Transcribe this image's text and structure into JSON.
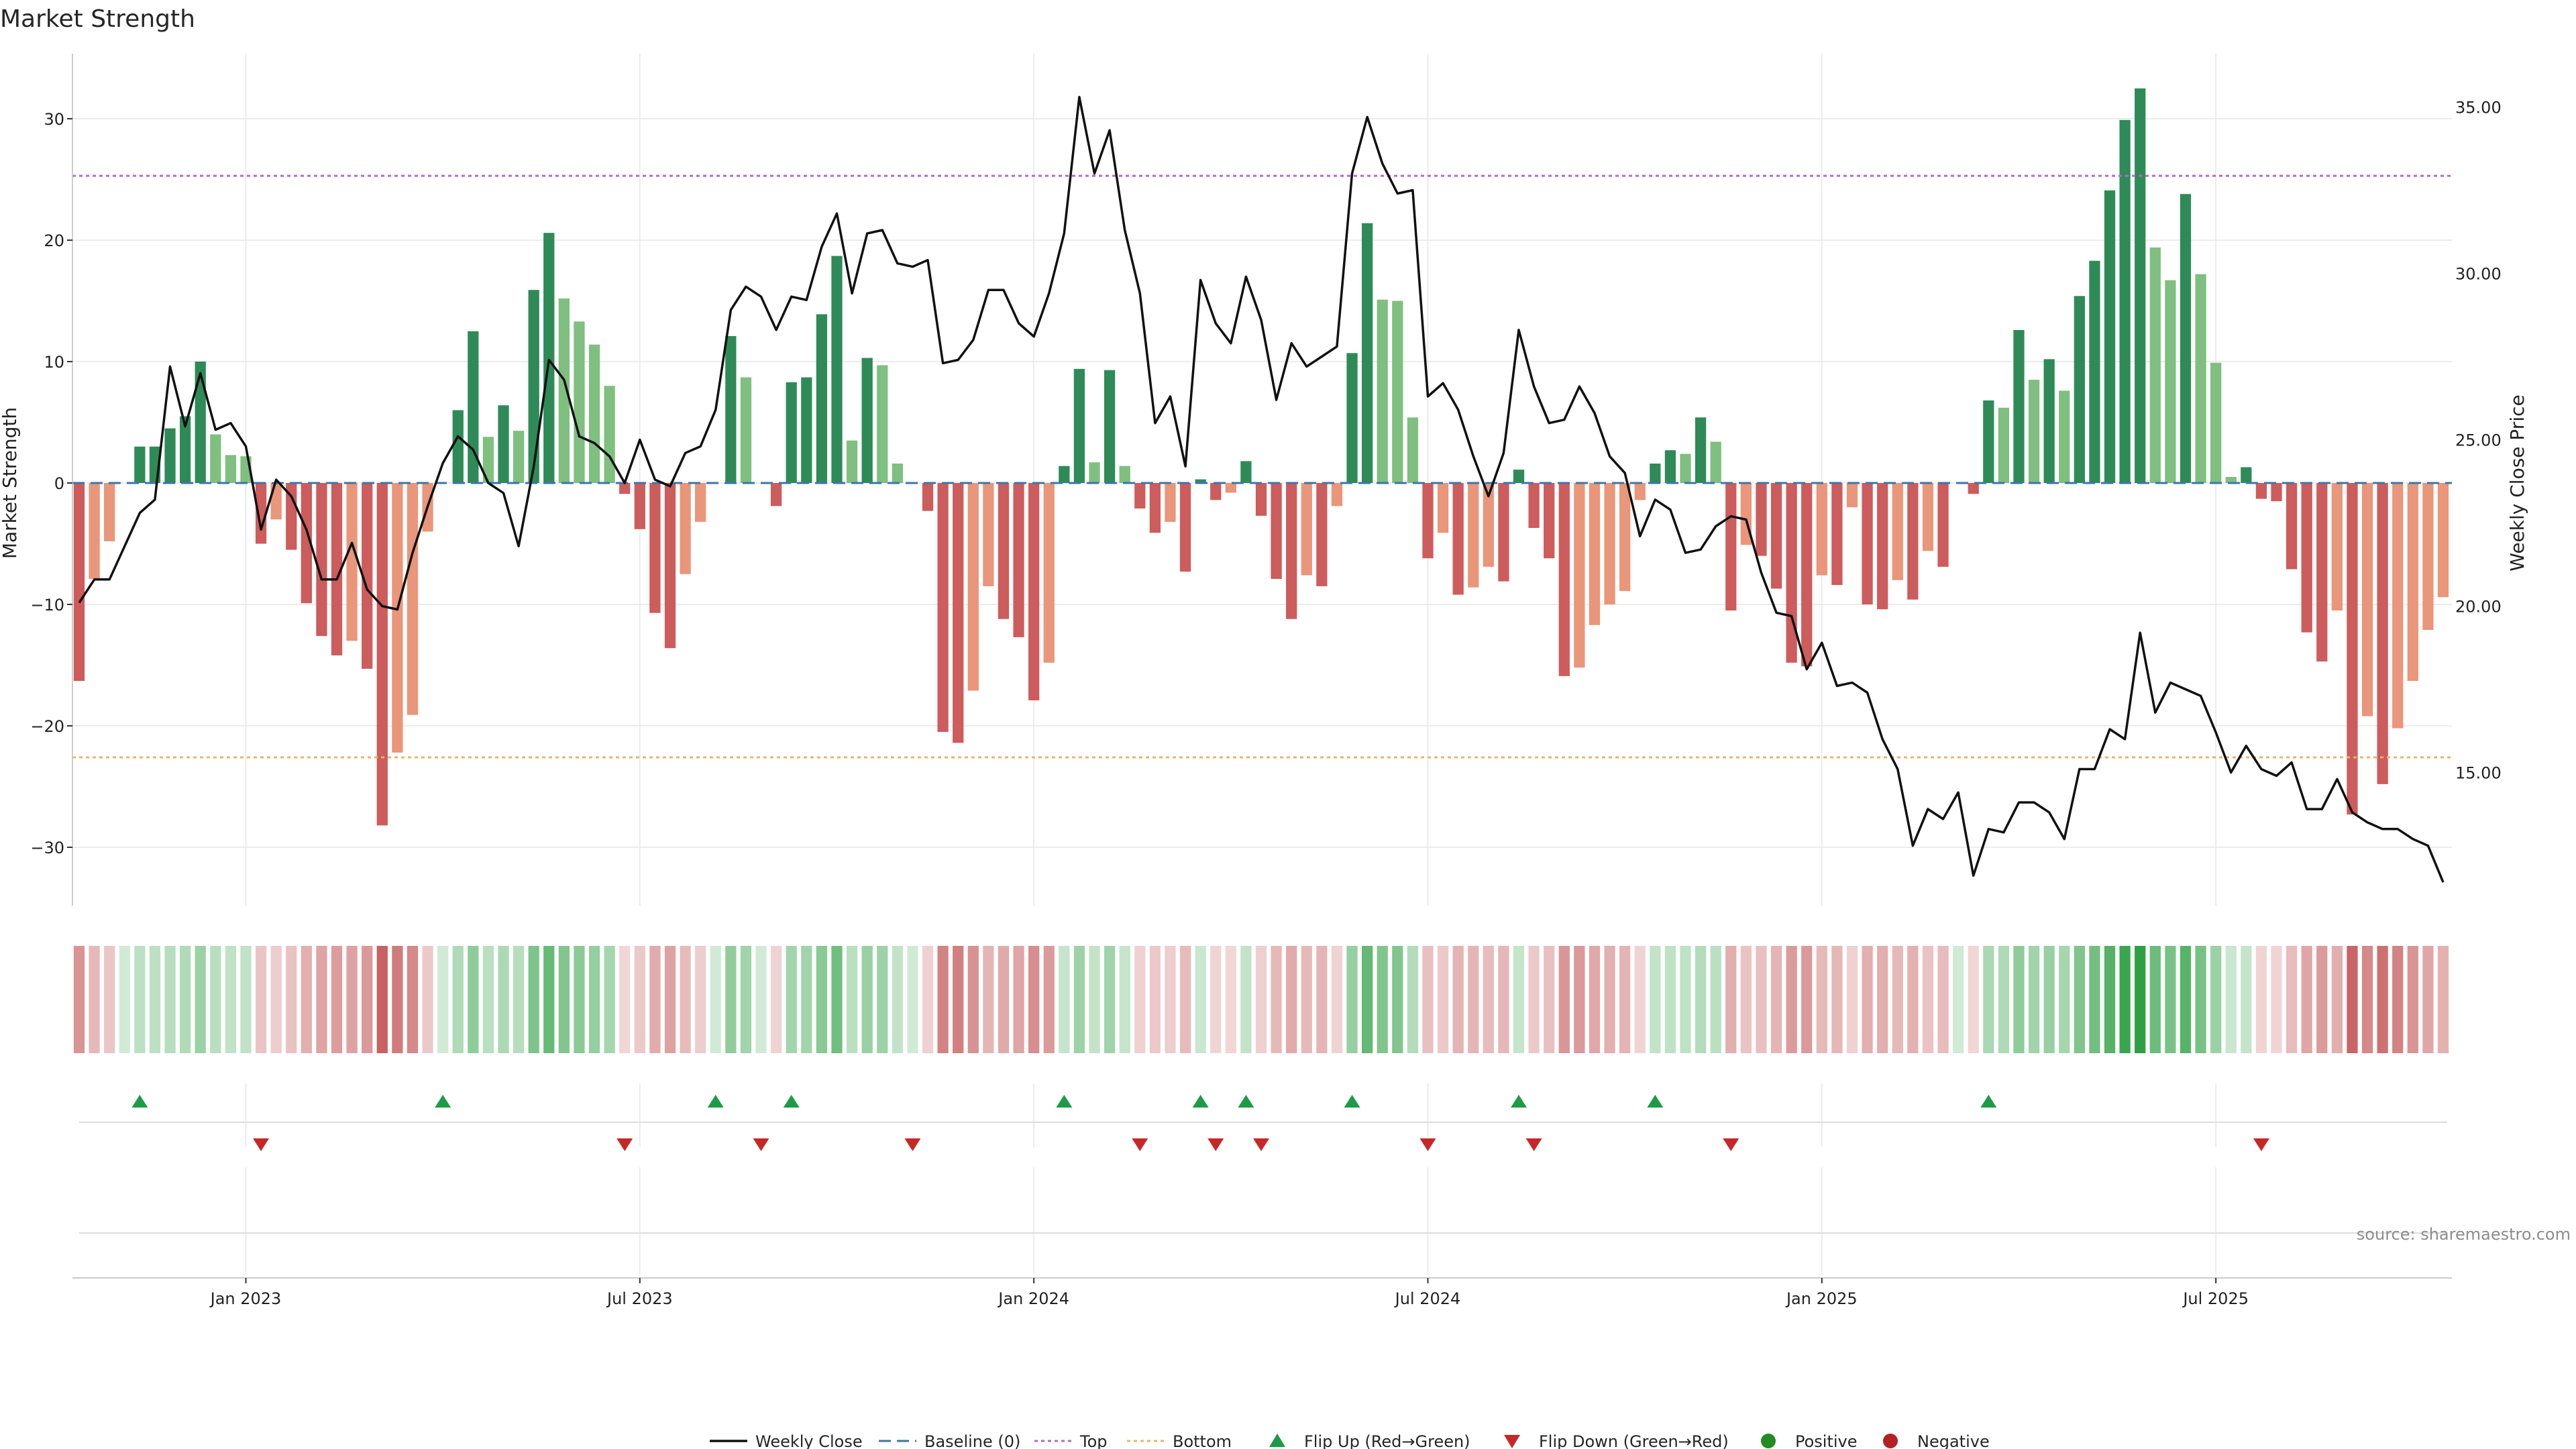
{
  "chart_data": {
    "type": "bar",
    "title": "Market Strength",
    "ylabel": "Market Strength",
    "y2label": "Weekly Close Price",
    "source": "source: sharemaestro.com",
    "ylim": [
      -35,
      35
    ],
    "y2lim": [
      11.5,
      36.5
    ],
    "yticks": [
      {
        "v": 30,
        "label": "30"
      },
      {
        "v": 20,
        "label": "20"
      },
      {
        "v": 10,
        "label": "10"
      },
      {
        "v": 0,
        "label": "0"
      },
      {
        "v": -10,
        "label": "−10"
      },
      {
        "v": -20,
        "label": "−20"
      },
      {
        "v": -30,
        "label": "−30"
      }
    ],
    "y2ticks": [
      {
        "v": 35,
        "label": "35.00"
      },
      {
        "v": 30,
        "label": "30.00"
      },
      {
        "v": 25,
        "label": "25.00"
      },
      {
        "v": 20,
        "label": "20.00"
      },
      {
        "v": 15,
        "label": "15.00"
      }
    ],
    "xticks": [
      {
        "week": 11,
        "label": "Jan 2023"
      },
      {
        "week": 37,
        "label": "Jul 2023"
      },
      {
        "week": 63,
        "label": "Jan 2024"
      },
      {
        "week": 89,
        "label": "Jul 2024"
      },
      {
        "week": 115,
        "label": "Jan 2025"
      },
      {
        "week": 141,
        "label": "Jul 2025"
      }
    ],
    "top_line": 25.3,
    "bottom_line": -22.6,
    "strength": [
      -16.3,
      -7.9,
      -4.8,
      0,
      3,
      3,
      4.5,
      5.5,
      10,
      4,
      2.3,
      2.2,
      -5,
      -3,
      -5.5,
      -9.9,
      -12.6,
      -14.2,
      -13,
      -15.3,
      -28.2,
      -22.2,
      -19.1,
      -4,
      0,
      6,
      12.5,
      3.8,
      6.4,
      4.3,
      15.9,
      20.6,
      15.2,
      13.3,
      11.4,
      8,
      -0.9,
      -3.8,
      -10.7,
      -13.6,
      -7.5,
      -3.2,
      0,
      12.1,
      8.7,
      0,
      -1.9,
      8.3,
      8.7,
      13.9,
      18.7,
      3.5,
      10.3,
      9.7,
      1.6,
      0,
      -2.3,
      -20.5,
      -21.4,
      -17.1,
      -8.5,
      -11.2,
      -12.7,
      -17.9,
      -14.8,
      1.4,
      9.4,
      1.7,
      9.3,
      1.4,
      -2.1,
      -4.1,
      -3.2,
      -7.3,
      0.3,
      -1.4,
      -0.8,
      1.8,
      -2.7,
      -7.9,
      -11.2,
      -7.6,
      -8.5,
      -1.9,
      10.7,
      21.4,
      15.1,
      15,
      5.4,
      -6.2,
      -4.1,
      -9.2,
      -8.6,
      -6.9,
      -8.1,
      1.1,
      -3.7,
      -6.2,
      -15.9,
      -15.2,
      -11.7,
      -10,
      -8.9,
      -1.4,
      1.6,
      2.7,
      2.4,
      5.4,
      3.4,
      -10.5,
      -5.1,
      -6,
      -8.7,
      -14.8,
      -15.1,
      -7.6,
      -8.4,
      -2,
      -10,
      -10.4,
      -8,
      -9.6,
      -5.6,
      -6.9,
      0,
      -0.9,
      6.8,
      6.2,
      12.6,
      8.5,
      10.2,
      7.6,
      15.4,
      18.3,
      24.1,
      29.9,
      32.5,
      19.4,
      16.7,
      23.8,
      17.2,
      9.9,
      0.5,
      1.3,
      -1.3,
      -1.5,
      -7.1,
      -12.3,
      -14.7,
      -10.5,
      -27.3,
      -19.2,
      -24.8,
      -20.2,
      -16.3,
      -12.1,
      -9.4
    ],
    "close": [
      20.1,
      20.8,
      20.8,
      21.8,
      22.8,
      23.2,
      27.2,
      25.4,
      27,
      25.3,
      25.5,
      24.8,
      22.3,
      23.8,
      23.3,
      22.3,
      20.8,
      20.8,
      21.9,
      20.5,
      20,
      19.9,
      21.6,
      23,
      24.3,
      25.1,
      24.7,
      23.7,
      23.4,
      21.8,
      24.2,
      27.4,
      26.8,
      25.1,
      24.9,
      24.5,
      23.7,
      25,
      23.8,
      23.6,
      24.6,
      24.8,
      25.9,
      28.9,
      29.6,
      29.3,
      28.3,
      29.3,
      29.2,
      30.8,
      31.8,
      29.4,
      31.2,
      31.3,
      30.3,
      30.2,
      30.4,
      27.3,
      27.4,
      28,
      29.5,
      29.5,
      28.5,
      28.1,
      29.4,
      31.2,
      35.3,
      33,
      34.3,
      31.3,
      29.4,
      25.5,
      26.3,
      24.2,
      29.8,
      28.5,
      27.9,
      29.9,
      28.6,
      26.2,
      27.9,
      27.2,
      27.5,
      27.8,
      33,
      34.7,
      33.3,
      32.4,
      32.5,
      26.3,
      26.7,
      25.9,
      24.5,
      23.3,
      24.6,
      28.3,
      26.6,
      25.5,
      25.6,
      26.6,
      25.8,
      24.5,
      24,
      22.1,
      23.2,
      22.9,
      21.6,
      21.7,
      22.4,
      22.7,
      22.6,
      21,
      19.8,
      19.7,
      18.1,
      18.9,
      17.6,
      17.7,
      17.4,
      16,
      15.1,
      12.8,
      13.9,
      13.6,
      14.4,
      11.9,
      13.3,
      13.2,
      14.1,
      14.1,
      13.8,
      13,
      15.1,
      15.1,
      16.3,
      16,
      19.2,
      16.8,
      17.7,
      17.5,
      17.3,
      16.2,
      15,
      15.8,
      15.1,
      14.9,
      15.3,
      13.9,
      13.9,
      14.8,
      13.8,
      13.5,
      13.3,
      13.3,
      13,
      12.8,
      11.7
    ],
    "heat_strip": {
      "type": "heatmap",
      "rows": 1,
      "values": "strength"
    },
    "flips_up": [
      4,
      24,
      42,
      47,
      65,
      74,
      77,
      84,
      95,
      104,
      126
    ],
    "flips_down": [
      12,
      36,
      45,
      55,
      70,
      75,
      78,
      89,
      96,
      109,
      144
    ],
    "colors": {
      "pos_strong": "#2e8b57",
      "pos_weak": "#7fbf7f",
      "neg_strong": "#cd5c5c",
      "neg_weak": "#e9967a",
      "close_line": "#111111",
      "baseline": "#3b76a8",
      "top": "#b36bc9",
      "bottom": "#e8b56a",
      "flip_up": "#1e9b46",
      "flip_down": "#c62828",
      "positive": "#228b22",
      "negative": "#b22222",
      "grid": "#e6e6e6"
    },
    "legend_placement": "bottom-center",
    "legend": [
      {
        "key": "close",
        "label": "Weekly Close"
      },
      {
        "key": "baseline",
        "label": "Baseline (0)"
      },
      {
        "key": "top",
        "label": "Top"
      },
      {
        "key": "bottom",
        "label": "Bottom"
      },
      {
        "key": "flip_up",
        "label": "Flip Up (Red→Green)"
      },
      {
        "key": "flip_down",
        "label": "Flip Down (Green→Red)"
      },
      {
        "key": "positive",
        "label": "Positive"
      },
      {
        "key": "negative",
        "label": "Negative"
      }
    ]
  }
}
